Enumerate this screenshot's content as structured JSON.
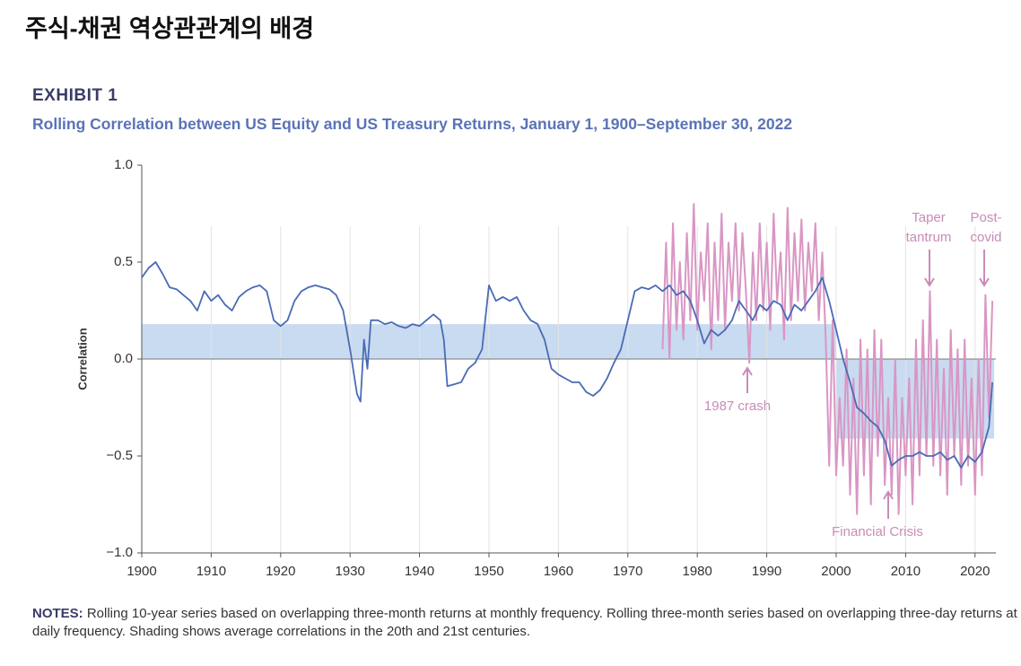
{
  "page_title": "주식-채권 역상관관계의 배경",
  "chart_data": {
    "type": "line",
    "exhibit": "EXHIBIT 1",
    "title": "Rolling Correlation between US Equity and US Treasury Returns, January 1, 1900–September 30, 2022",
    "y_label": "Correlation",
    "xlim": [
      1900,
      2023
    ],
    "ylim": [
      -1,
      1
    ],
    "xticks": [
      1900,
      1910,
      1920,
      1930,
      1940,
      1950,
      1960,
      1970,
      1980,
      1990,
      2000,
      2010,
      2020
    ],
    "yticks": [
      {
        "value": 1.0,
        "label": "1.0"
      },
      {
        "value": 0.5,
        "label": "0.5"
      },
      {
        "value": 0.0,
        "label": "0.0"
      },
      {
        "value": -0.5,
        "label": "−0.5"
      },
      {
        "value": -1.0,
        "label": "−1.0"
      }
    ],
    "grid": true,
    "bands": [
      {
        "x": [
          1900,
          2000
        ],
        "value": 0.18,
        "color": "#c9dbf0"
      },
      {
        "x": [
          2000,
          2022.75
        ],
        "value": -0.41,
        "color": "#c9dbf0"
      }
    ],
    "series": [
      {
        "color": "#d996c4",
        "x": [
          1975,
          1975.5,
          1976,
          1976.5,
          1977,
          1977.5,
          1978,
          1978.5,
          1979,
          1979.5,
          1980,
          1980.5,
          1981,
          1981.5,
          1982,
          1982.5,
          1983,
          1983.5,
          1984,
          1984.5,
          1985,
          1985.5,
          1986,
          1986.5,
          1987,
          1987.5,
          1988,
          1988.5,
          1989,
          1989.5,
          1990,
          1990.5,
          1991,
          1991.5,
          1992,
          1992.5,
          1993,
          1993.5,
          1994,
          1994.5,
          1995,
          1995.5,
          1996,
          1996.5,
          1997,
          1997.5,
          1998,
          1998.5,
          1999,
          1999.5,
          2000,
          2000.5,
          2001,
          2001.5,
          2002,
          2002.5,
          2003,
          2003.5,
          2004,
          2004.5,
          2005,
          2005.5,
          2006,
          2006.5,
          2007,
          2007.5,
          2008,
          2008.5,
          2009,
          2009.5,
          2010,
          2010.5,
          2011,
          2011.5,
          2012,
          2012.5,
          2013,
          2013.5,
          2014,
          2014.5,
          2015,
          2015.5,
          2016,
          2016.5,
          2017,
          2017.5,
          2018,
          2018.5,
          2019,
          2019.5,
          2020,
          2020.5,
          2021,
          2021.5,
          2022,
          2022.5
        ],
        "values": [
          0.05,
          0.6,
          0.0,
          0.7,
          0.15,
          0.5,
          0.1,
          0.65,
          0.2,
          0.8,
          0.15,
          0.55,
          0.3,
          0.7,
          0.05,
          0.6,
          0.2,
          0.75,
          0.15,
          0.6,
          0.3,
          0.7,
          0.25,
          0.65,
          0.35,
          -0.02,
          0.55,
          0.2,
          0.7,
          0.25,
          0.6,
          0.15,
          0.75,
          0.3,
          0.55,
          0.1,
          0.78,
          0.2,
          0.65,
          0.3,
          0.72,
          0.25,
          0.6,
          0.35,
          0.7,
          0.2,
          0.55,
          0.1,
          -0.55,
          0.2,
          -0.6,
          -0.2,
          -0.55,
          0.05,
          -0.7,
          -0.1,
          -0.8,
          0.1,
          -0.6,
          0.05,
          -0.75,
          0.15,
          -0.5,
          0.1,
          -0.65,
          -0.2,
          -0.7,
          0.0,
          -0.8,
          -0.2,
          -0.6,
          -0.1,
          -0.75,
          0.1,
          -0.6,
          0.2,
          -0.5,
          0.35,
          -0.55,
          0.1,
          -0.6,
          -0.05,
          -0.7,
          0.15,
          -0.5,
          0.05,
          -0.65,
          0.1,
          -0.55,
          -0.1,
          -0.7,
          0.0,
          -0.6,
          0.33,
          -0.3,
          0.3
        ]
      },
      {
        "color": "#4a6bb5",
        "x": [
          1900,
          1901,
          1902,
          1903,
          1904,
          1905,
          1906,
          1907,
          1908,
          1909,
          1910,
          1911,
          1912,
          1913,
          1914,
          1915,
          1916,
          1917,
          1918,
          1919,
          1920,
          1921,
          1922,
          1923,
          1924,
          1925,
          1926,
          1927,
          1928,
          1929,
          1930,
          1931,
          1931.5,
          1932,
          1932.5,
          1933,
          1934,
          1935,
          1936,
          1937,
          1938,
          1939,
          1940,
          1941,
          1942,
          1943,
          1943.5,
          1944,
          1945,
          1946,
          1947,
          1948,
          1949,
          1950,
          1951,
          1952,
          1953,
          1954,
          1955,
          1956,
          1957,
          1958,
          1959,
          1960,
          1961,
          1962,
          1963,
          1964,
          1965,
          1966,
          1967,
          1968,
          1969,
          1970,
          1971,
          1972,
          1973,
          1974,
          1975,
          1976,
          1977,
          1978,
          1979,
          1980,
          1981,
          1982,
          1983,
          1984,
          1985,
          1986,
          1987,
          1988,
          1989,
          1990,
          1991,
          1992,
          1993,
          1994,
          1995,
          1996,
          1997,
          1998,
          1999,
          2000,
          2001,
          2002,
          2003,
          2004,
          2005,
          2006,
          2007,
          2008,
          2009,
          2010,
          2011,
          2012,
          2013,
          2014,
          2015,
          2016,
          2017,
          2018,
          2019,
          2020,
          2021,
          2022,
          2022.5
        ],
        "values": [
          0.42,
          0.47,
          0.5,
          0.44,
          0.37,
          0.36,
          0.33,
          0.3,
          0.25,
          0.35,
          0.3,
          0.33,
          0.28,
          0.25,
          0.32,
          0.35,
          0.37,
          0.38,
          0.35,
          0.2,
          0.17,
          0.2,
          0.3,
          0.35,
          0.37,
          0.38,
          0.37,
          0.36,
          0.33,
          0.25,
          0.05,
          -0.18,
          -0.22,
          0.1,
          -0.05,
          0.2,
          0.2,
          0.18,
          0.19,
          0.17,
          0.16,
          0.18,
          0.17,
          0.2,
          0.23,
          0.2,
          0.1,
          -0.14,
          -0.13,
          -0.12,
          -0.05,
          -0.02,
          0.05,
          0.38,
          0.3,
          0.32,
          0.3,
          0.32,
          0.25,
          0.2,
          0.18,
          0.1,
          -0.05,
          -0.08,
          -0.1,
          -0.12,
          -0.12,
          -0.17,
          -0.19,
          -0.16,
          -0.1,
          -0.02,
          0.05,
          0.2,
          0.35,
          0.37,
          0.36,
          0.38,
          0.35,
          0.38,
          0.33,
          0.35,
          0.3,
          0.2,
          0.08,
          0.15,
          0.12,
          0.15,
          0.2,
          0.3,
          0.25,
          0.2,
          0.28,
          0.25,
          0.3,
          0.28,
          0.2,
          0.28,
          0.25,
          0.3,
          0.35,
          0.42,
          0.3,
          0.15,
          0.0,
          -0.12,
          -0.25,
          -0.28,
          -0.32,
          -0.35,
          -0.42,
          -0.55,
          -0.52,
          -0.5,
          -0.5,
          -0.48,
          -0.5,
          -0.5,
          -0.48,
          -0.52,
          -0.5,
          -0.56,
          -0.5,
          -0.53,
          -0.48,
          -0.35,
          -0.12
        ]
      }
    ],
    "annotations": [
      {
        "lines": [
          "1987 crash"
        ]
      },
      {
        "lines": [
          "Financial Crisis"
        ]
      },
      {
        "lines": [
          "Taper",
          "tantrum"
        ]
      },
      {
        "lines": [
          "Post-",
          "covid"
        ]
      }
    ],
    "notes_label": "NOTES:",
    "notes": "Rolling 10-year series based on overlapping three-month returns at monthly frequency. Rolling three-month series based on overlapping three-day returns at daily frequency. Shading shows average correlations in the 20th and 21st centuries."
  }
}
